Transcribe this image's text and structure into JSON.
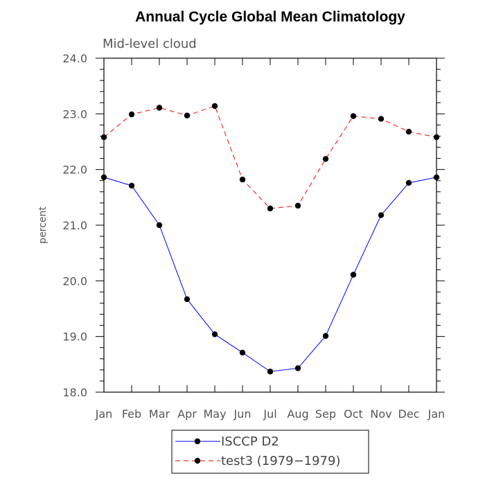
{
  "chart_data": {
    "type": "line",
    "title": "Annual Cycle Global Mean Climatology",
    "subtitle": "Mid-level cloud",
    "xlabel": "",
    "ylabel": "percent",
    "categories": [
      "Jan",
      "Feb",
      "Mar",
      "Apr",
      "May",
      "Jun",
      "Jul",
      "Aug",
      "Sep",
      "Oct",
      "Nov",
      "Dec",
      "Jan"
    ],
    "ylim": [
      18.0,
      24.0
    ],
    "yticks": [
      "18.0",
      "19.0",
      "20.0",
      "21.0",
      "22.0",
      "23.0",
      "24.0"
    ],
    "grid": false,
    "legend_position": "bottom-center",
    "series": [
      {
        "name": "ISCCP D2",
        "color": "#0000ff",
        "line_style": "solid",
        "values": [
          21.86,
          21.71,
          21.0,
          19.67,
          19.04,
          18.71,
          18.37,
          18.43,
          19.01,
          20.11,
          21.18,
          21.76,
          21.86
        ]
      },
      {
        "name": "test3 (1979−1979)",
        "color": "#ff0000",
        "line_style": "dashed",
        "values": [
          22.58,
          22.99,
          23.11,
          22.97,
          23.14,
          21.82,
          21.3,
          21.35,
          22.19,
          22.96,
          22.91,
          22.68,
          22.58
        ]
      }
    ]
  }
}
